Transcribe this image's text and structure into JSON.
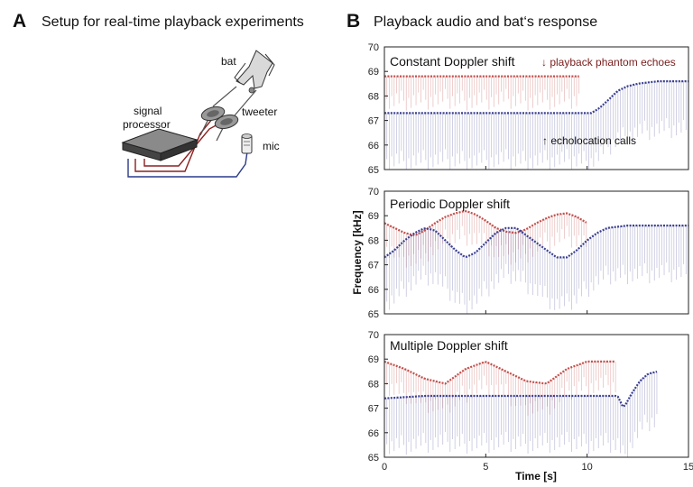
{
  "panel_a": {
    "letter": "A",
    "title": "Setup for real-time playback experiments",
    "labels": {
      "bat": "bat",
      "tweeter": "tweeter",
      "signal_processor_line1": "signal",
      "signal_processor_line2": "processor",
      "mic": "mic"
    },
    "colors": {
      "cable_red": "#8b2020",
      "cable_blue": "#2a3a8a",
      "device": "#555555"
    }
  },
  "panel_b": {
    "letter": "B",
    "title": "Playback audio and bat‘s response",
    "annotations": {
      "echoes": "↓ playback phantom echoes",
      "calls": "↑ echolocation calls"
    },
    "colors": {
      "echo": "#c0504d",
      "call": "#3a3f8f",
      "echo_text": "#7a1d1d"
    }
  },
  "chart_data": [
    {
      "type": "line",
      "title": "Constant Doppler shift",
      "xlabel": "Time [s]",
      "ylabel": "Frequency [kHz]",
      "xlim": [
        0,
        15
      ],
      "ylim": [
        65,
        70
      ],
      "xticks": [
        0,
        5,
        10,
        15
      ],
      "yticks": [
        65,
        66,
        67,
        68,
        69,
        70
      ],
      "series": [
        {
          "name": "playback phantom echoes",
          "x": [
            0,
            9.7
          ],
          "y": [
            68.8,
            68.8
          ]
        },
        {
          "name": "echolocation calls",
          "x": [
            0,
            9.7,
            10.2,
            10.6,
            11.0,
            11.5,
            12.0,
            12.5,
            13.0,
            13.5,
            14.0,
            14.5,
            15.0
          ],
          "y": [
            67.3,
            67.3,
            67.3,
            67.5,
            67.8,
            68.2,
            68.4,
            68.5,
            68.55,
            68.6,
            68.6,
            68.6,
            68.6
          ]
        }
      ]
    },
    {
      "type": "line",
      "title": "Periodic Doppler shift",
      "xlabel": "Time [s]",
      "ylabel": "Frequency [kHz]",
      "xlim": [
        0,
        15
      ],
      "ylim": [
        65,
        70
      ],
      "xticks": [
        0,
        5,
        10,
        15
      ],
      "yticks": [
        65,
        66,
        67,
        68,
        69,
        70
      ],
      "series": [
        {
          "name": "playback phantom echoes",
          "x": [
            0,
            0.5,
            1.0,
            1.5,
            2.0,
            2.5,
            3.0,
            3.5,
            4.0,
            4.5,
            5.0,
            5.5,
            6.0,
            6.5,
            7.0,
            7.5,
            8.0,
            8.5,
            9.0,
            9.5,
            10.0
          ],
          "y": [
            68.7,
            68.5,
            68.3,
            68.2,
            68.4,
            68.7,
            68.95,
            69.1,
            69.2,
            69.05,
            68.8,
            68.5,
            68.35,
            68.3,
            68.45,
            68.7,
            68.9,
            69.05,
            69.1,
            68.95,
            68.7
          ]
        },
        {
          "name": "echolocation calls",
          "x": [
            0,
            0.5,
            1.0,
            1.5,
            2.0,
            2.5,
            3.0,
            3.5,
            4.0,
            4.5,
            5.0,
            5.5,
            6.0,
            6.5,
            7.0,
            7.5,
            8.0,
            8.5,
            9.0,
            9.5,
            10.0,
            10.5,
            11.0,
            11.5,
            12.0,
            12.5,
            13.0,
            14.0,
            15.0
          ],
          "y": [
            67.3,
            67.6,
            68.0,
            68.3,
            68.5,
            68.4,
            68.0,
            67.6,
            67.3,
            67.5,
            67.9,
            68.3,
            68.5,
            68.5,
            68.2,
            67.9,
            67.6,
            67.3,
            67.3,
            67.6,
            68.0,
            68.3,
            68.5,
            68.55,
            68.6,
            68.6,
            68.6,
            68.6,
            68.6
          ]
        }
      ]
    },
    {
      "type": "line",
      "title": "Multiple Doppler shift",
      "xlabel": "Time [s]",
      "ylabel": "Frequency [kHz]",
      "xlim": [
        0,
        15
      ],
      "ylim": [
        65,
        70
      ],
      "xticks": [
        0,
        5,
        10,
        15
      ],
      "yticks": [
        65,
        66,
        67,
        68,
        69,
        70
      ],
      "series": [
        {
          "name": "playback phantom echoes",
          "x": [
            0,
            1,
            2,
            3,
            4,
            5,
            6,
            7,
            8,
            9,
            10,
            11.5
          ],
          "y": [
            68.9,
            68.6,
            68.2,
            68.0,
            68.6,
            68.9,
            68.5,
            68.1,
            68.0,
            68.6,
            68.9,
            68.9
          ]
        },
        {
          "name": "echolocation calls",
          "x": [
            0,
            2,
            4,
            6,
            8,
            10,
            11.5,
            11.8,
            12.2,
            12.6,
            13.0,
            13.5
          ],
          "y": [
            67.4,
            67.5,
            67.5,
            67.5,
            67.5,
            67.5,
            67.5,
            67.0,
            67.6,
            68.1,
            68.4,
            68.5
          ]
        }
      ]
    }
  ]
}
